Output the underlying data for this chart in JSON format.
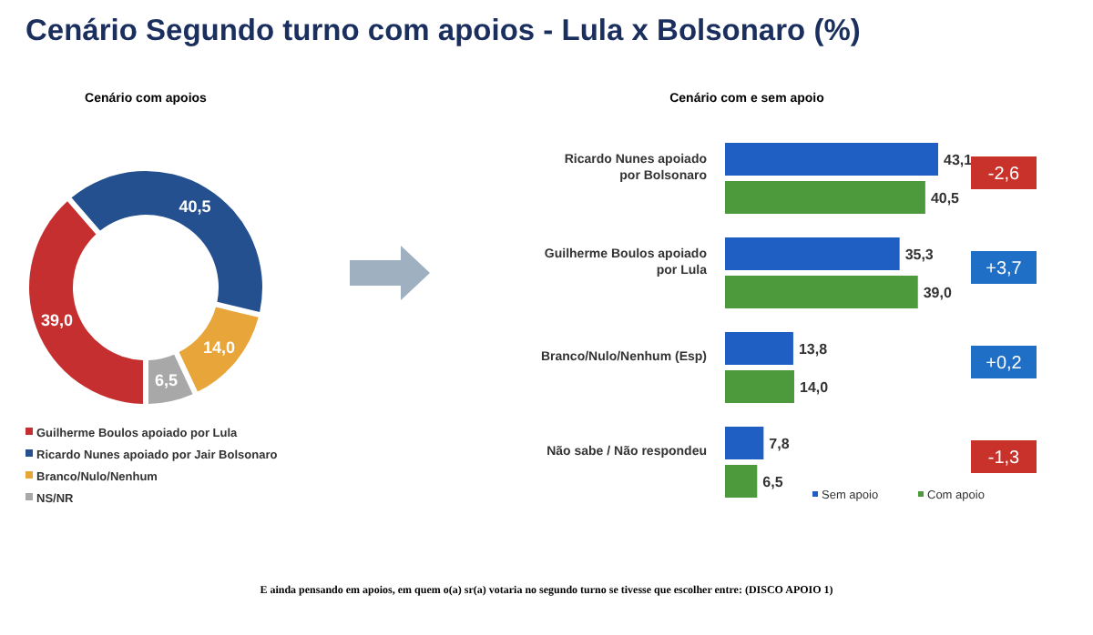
{
  "chart_data": [
    {
      "type": "donut",
      "title": "Cenário Segundo turno com apoios -  Lula x Bolsonaro (%)",
      "subtitle": "Cenário com apoios",
      "categories": [
        "Guilherme Boulos apoiado por Lula",
        "Ricardo Nunes apoiado por Jair Bolsonaro",
        "Branco/Nulo/Nenhum",
        "NS/NR"
      ],
      "values": [
        39.0,
        40.5,
        14.0,
        6.5
      ],
      "colors": [
        "#c62f2f",
        "#24508f",
        "#e8a63a",
        "#a8a8a8"
      ],
      "value_labels": [
        "39,0",
        "40,5",
        "14,0",
        "6,5"
      ],
      "legend": "bottom left"
    },
    {
      "type": "bar",
      "orientation": "horizontal",
      "title": "Cenário com e sem apoio",
      "categories": [
        "Ricardo Nunes apoiado por Bolsonaro",
        "Guilherme Boulos apoiado por Lula",
        "Branco/Nulo/Nenhum (Esp)",
        "Não sabe / Não respondeu"
      ],
      "series": [
        {
          "name": "Sem apoio",
          "color": "#1f5fc4",
          "values": [
            43.1,
            35.3,
            13.8,
            7.8
          ],
          "value_labels": [
            "43,1",
            "35,3",
            "13,8",
            "7,8"
          ]
        },
        {
          "name": "Com apoio",
          "color": "#4c9a3c",
          "values": [
            40.5,
            39.0,
            14.0,
            6.5
          ],
          "value_labels": [
            "40,5",
            "39,0",
            "14,0",
            "6,5"
          ]
        }
      ],
      "data_labels": true,
      "legend": "bottom right",
      "annotations": [
        "-2,6",
        "+3,7",
        "+0,2",
        "-1,3",
        "E ainda pensando em apoios, em quem o(a) sr(a) votaria no segundo turno se tivesse que escolher entre: (DISCO APOIO 1)"
      ]
    }
  ]
}
